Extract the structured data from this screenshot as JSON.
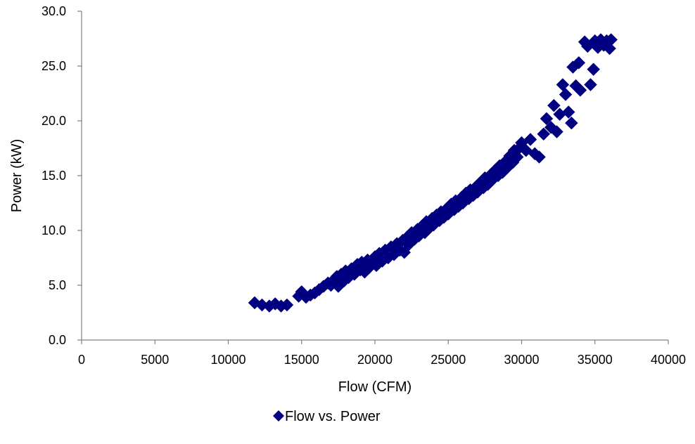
{
  "chart_data": {
    "type": "scatter",
    "title": "",
    "xlabel": "Flow (CFM)",
    "ylabel": "Power (kW)",
    "xlim": [
      0,
      40000
    ],
    "ylim": [
      0,
      30
    ],
    "xticks": [
      "0",
      "5000",
      "10000",
      "15000",
      "20000",
      "25000",
      "30000",
      "35000",
      "40000"
    ],
    "yticks": [
      "0.0",
      "5.0",
      "10.0",
      "15.0",
      "20.0",
      "25.0",
      "30.0"
    ],
    "grid": false,
    "legend_position": "bottom",
    "marker": "diamond",
    "series": [
      {
        "name": "Flow vs. Power",
        "color": "#000080",
        "points": [
          [
            11800,
            3.4
          ],
          [
            12300,
            3.2
          ],
          [
            12800,
            3.1
          ],
          [
            13200,
            3.3
          ],
          [
            13600,
            3.1
          ],
          [
            14000,
            3.2
          ],
          [
            14800,
            4.0
          ],
          [
            15000,
            4.4
          ],
          [
            15300,
            3.9
          ],
          [
            15600,
            4.1
          ],
          [
            15900,
            4.3
          ],
          [
            16200,
            4.6
          ],
          [
            16500,
            4.9
          ],
          [
            16800,
            5.2
          ],
          [
            17000,
            5.0
          ],
          [
            17200,
            5.5
          ],
          [
            17400,
            5.8
          ],
          [
            17500,
            4.9
          ],
          [
            17700,
            6.0
          ],
          [
            17900,
            5.4
          ],
          [
            18000,
            6.3
          ],
          [
            18200,
            5.7
          ],
          [
            18400,
            6.5
          ],
          [
            18600,
            6.0
          ],
          [
            18800,
            6.9
          ],
          [
            19000,
            6.4
          ],
          [
            19100,
            7.1
          ],
          [
            19300,
            6.2
          ],
          [
            19500,
            7.3
          ],
          [
            19600,
            6.6
          ],
          [
            19800,
            7.0
          ],
          [
            20000,
            7.6
          ],
          [
            20100,
            6.8
          ],
          [
            20300,
            7.9
          ],
          [
            20500,
            7.2
          ],
          [
            20700,
            8.2
          ],
          [
            20900,
            7.5
          ],
          [
            21100,
            8.5
          ],
          [
            21300,
            7.8
          ],
          [
            21500,
            8.8
          ],
          [
            21700,
            8.2
          ],
          [
            21900,
            9.1
          ],
          [
            22000,
            8.0
          ],
          [
            22200,
            9.4
          ],
          [
            22300,
            8.7
          ],
          [
            22500,
            9.8
          ],
          [
            22700,
            9.2
          ],
          [
            22900,
            10.1
          ],
          [
            23000,
            9.5
          ],
          [
            23200,
            10.4
          ],
          [
            23400,
            9.8
          ],
          [
            23500,
            10.8
          ],
          [
            23700,
            10.2
          ],
          [
            23900,
            11.1
          ],
          [
            24000,
            10.5
          ],
          [
            24200,
            11.4
          ],
          [
            24400,
            10.9
          ],
          [
            24500,
            11.7
          ],
          [
            24700,
            11.2
          ],
          [
            24900,
            12.0
          ],
          [
            25000,
            11.5
          ],
          [
            25200,
            12.4
          ],
          [
            25400,
            11.9
          ],
          [
            25500,
            12.7
          ],
          [
            25700,
            12.2
          ],
          [
            25900,
            13.0
          ],
          [
            26000,
            12.5
          ],
          [
            26200,
            13.4
          ],
          [
            26400,
            12.9
          ],
          [
            26500,
            13.7
          ],
          [
            26700,
            13.2
          ],
          [
            26900,
            14.0
          ],
          [
            27000,
            13.5
          ],
          [
            27200,
            14.4
          ],
          [
            27400,
            13.9
          ],
          [
            27500,
            14.8
          ],
          [
            27700,
            14.2
          ],
          [
            27900,
            15.1
          ],
          [
            28000,
            14.6
          ],
          [
            28200,
            15.5
          ],
          [
            28400,
            15.0
          ],
          [
            28500,
            15.9
          ],
          [
            28700,
            15.3
          ],
          [
            28900,
            16.3
          ],
          [
            29000,
            15.7
          ],
          [
            29200,
            16.8
          ],
          [
            29400,
            16.2
          ],
          [
            29500,
            17.3
          ],
          [
            29700,
            16.7
          ],
          [
            29900,
            17.6
          ],
          [
            30000,
            18.0
          ],
          [
            30300,
            17.3
          ],
          [
            30600,
            18.3
          ],
          [
            30900,
            17.0
          ],
          [
            31200,
            16.7
          ],
          [
            31500,
            18.8
          ],
          [
            31700,
            20.2
          ],
          [
            32000,
            19.4
          ],
          [
            32200,
            21.4
          ],
          [
            32400,
            19.0
          ],
          [
            32600,
            20.6
          ],
          [
            32800,
            23.3
          ],
          [
            33000,
            22.4
          ],
          [
            33200,
            20.8
          ],
          [
            33400,
            19.8
          ],
          [
            33500,
            24.9
          ],
          [
            33700,
            23.2
          ],
          [
            33900,
            25.3
          ],
          [
            34000,
            22.8
          ],
          [
            34300,
            27.2
          ],
          [
            34500,
            26.8
          ],
          [
            34700,
            23.3
          ],
          [
            34900,
            24.7
          ],
          [
            35000,
            27.3
          ],
          [
            35200,
            26.7
          ],
          [
            35400,
            27.4
          ],
          [
            35600,
            26.9
          ],
          [
            35800,
            27.3
          ],
          [
            36000,
            26.6
          ],
          [
            36100,
            27.4
          ]
        ]
      }
    ]
  }
}
